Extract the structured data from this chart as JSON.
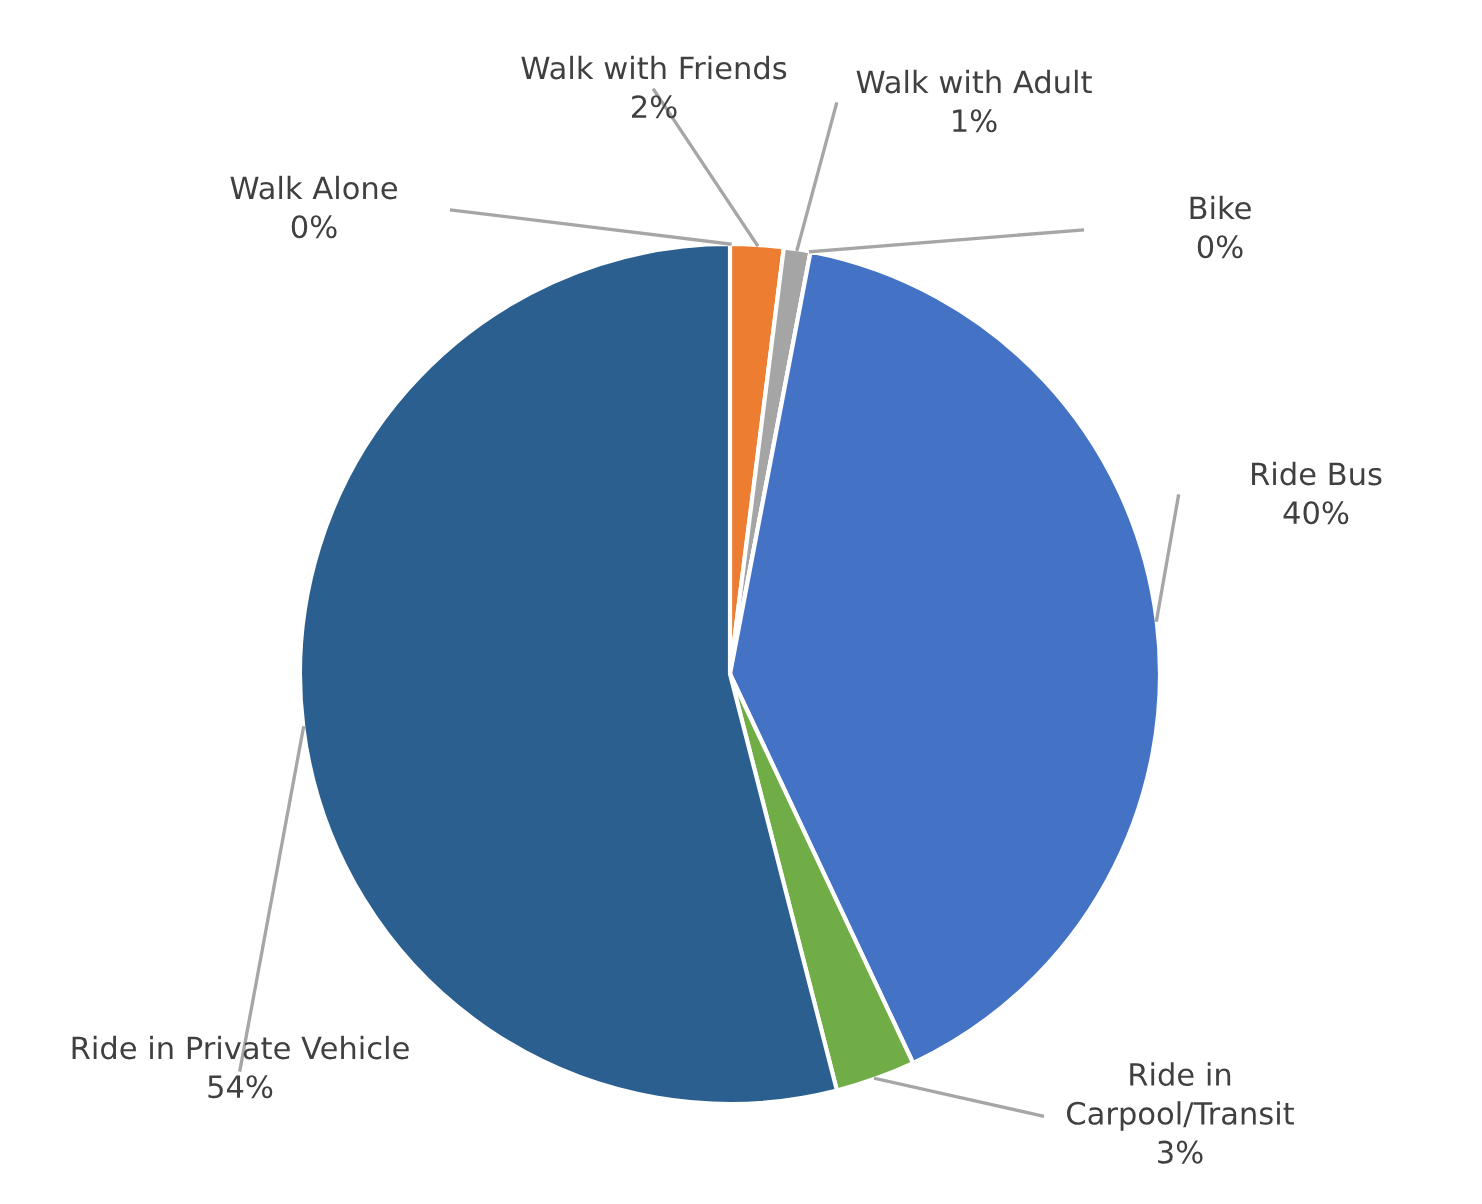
{
  "chart_data": {
    "type": "pie",
    "categories": [
      "Walk Alone",
      "Walk with Friends",
      "Walk with Adult",
      "Bike",
      "Ride Bus",
      "Ride in Carpool/Transit",
      "Ride in Private Vehicle"
    ],
    "values": [
      0,
      2,
      1,
      0,
      40,
      3,
      54
    ],
    "value_labels": [
      "0%",
      "2%",
      "1%",
      "0%",
      "40%",
      "3%",
      "54%"
    ],
    "colors": [
      "#5b9bd5",
      "#ed7d31",
      "#a5a5a5",
      "#ffc000",
      "#4472c4",
      "#70ad47",
      "#2b5f8f"
    ]
  }
}
